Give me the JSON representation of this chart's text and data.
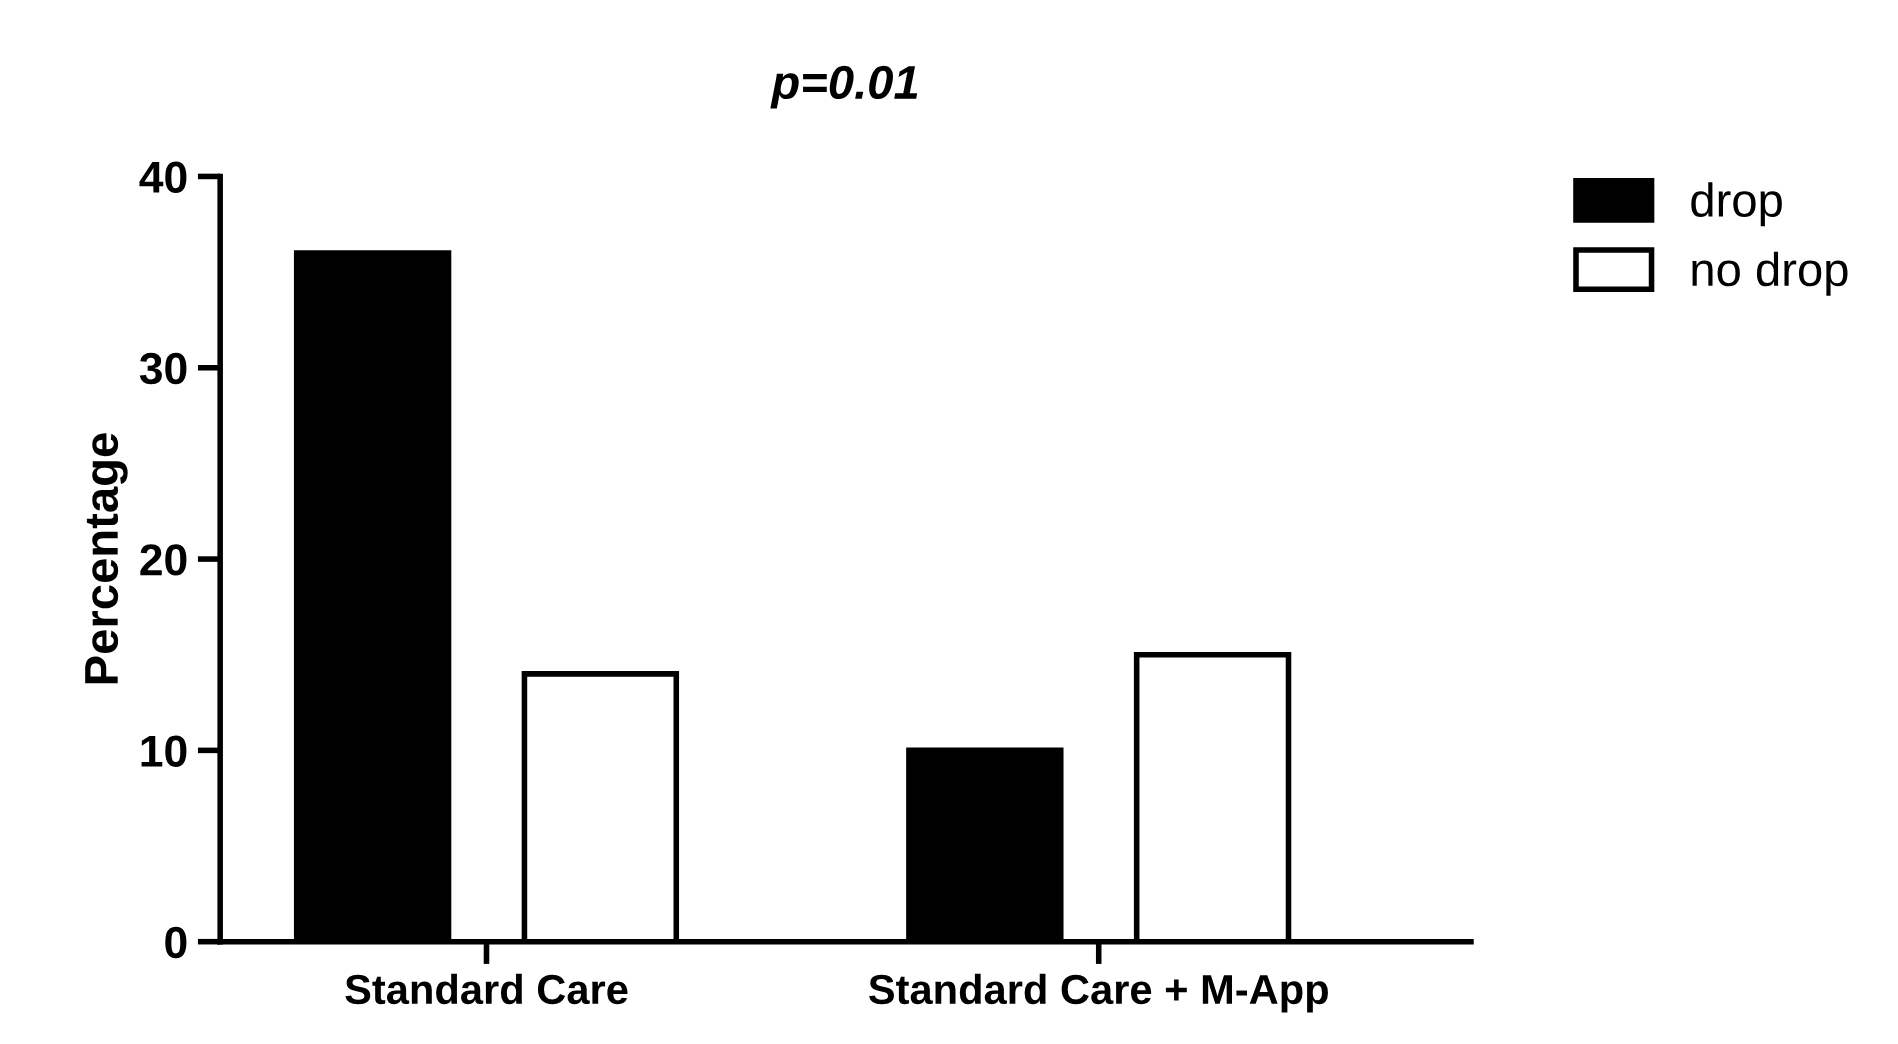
{
  "chart_data": {
    "type": "bar",
    "title": "p=0.01",
    "ylabel": "Percentage",
    "categories": [
      "Standard Care",
      "Standard Care + M-App"
    ],
    "series": [
      {
        "name": "drop",
        "color": "#000000",
        "values": [
          36,
          10
        ]
      },
      {
        "name": "no drop",
        "color": "#ffffff",
        "values": [
          14,
          15
        ]
      }
    ],
    "ylim": [
      0,
      40
    ],
    "yticks": [
      0,
      10,
      20,
      30,
      40
    ],
    "grid": false,
    "legend": "top right"
  }
}
